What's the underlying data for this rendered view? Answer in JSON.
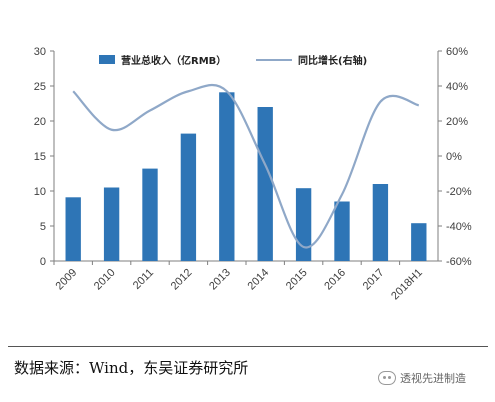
{
  "chart_data": {
    "type": "bar+line",
    "categories": [
      "2009",
      "2010",
      "2011",
      "2012",
      "2013",
      "2014",
      "2015",
      "2016",
      "2017",
      "2018H1"
    ],
    "series": [
      {
        "name": "营业总收入（亿RMB）",
        "type": "bar",
        "axis": "left",
        "color": "#2e75b6",
        "values": [
          9.1,
          10.5,
          13.2,
          18.2,
          24.1,
          22.0,
          10.4,
          8.5,
          11.0,
          5.4
        ]
      },
      {
        "name": "同比增长(右轴)",
        "type": "line",
        "axis": "right",
        "color": "#8fa8c8",
        "values": [
          37,
          15,
          26,
          37,
          37,
          -5,
          -52,
          -22,
          31,
          29
        ]
      }
    ],
    "y_left": {
      "min": 0,
      "max": 30,
      "ticks": [
        "0",
        "5",
        "10",
        "15",
        "20",
        "25",
        "30"
      ]
    },
    "y_right": {
      "min": -60,
      "max": 60,
      "ticks": [
        "-60%",
        "-40%",
        "-20%",
        "0%",
        "20%",
        "40%",
        "60%"
      ]
    },
    "grid": false,
    "legend": "top"
  },
  "footer": {
    "source": "数据来源：Wind，东吴证券研究所",
    "watermark": "透视先进制造"
  }
}
